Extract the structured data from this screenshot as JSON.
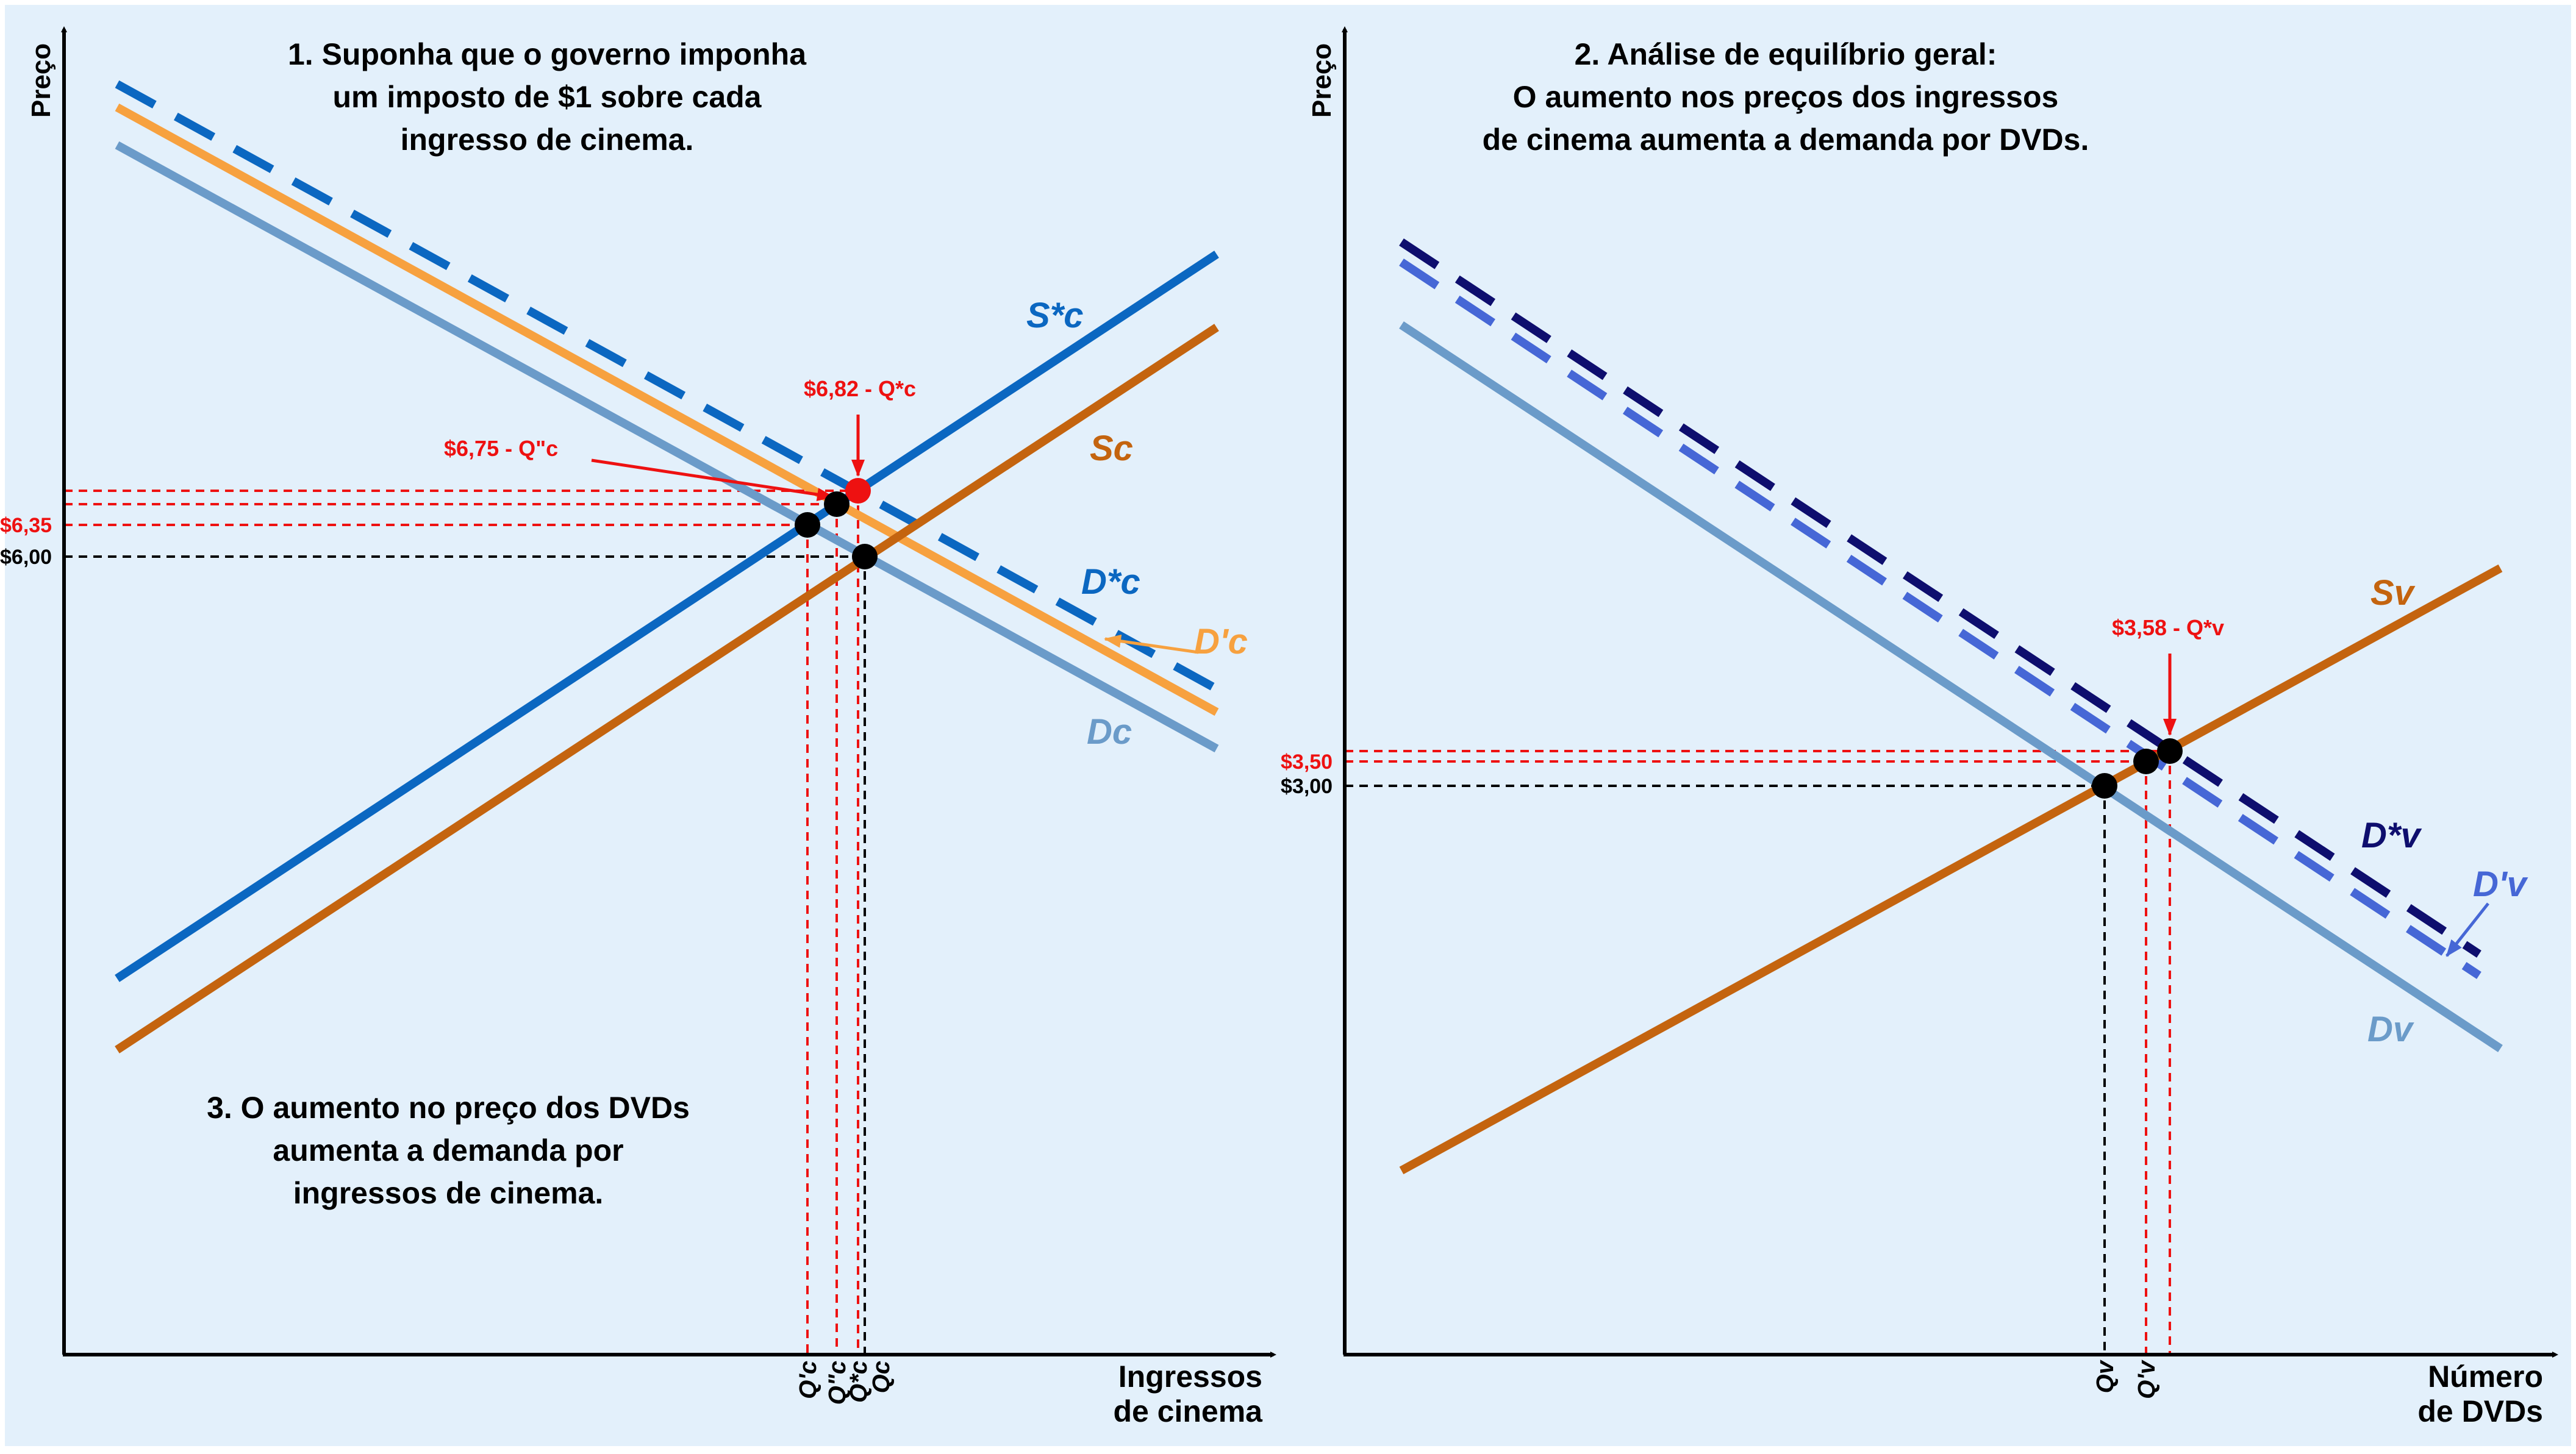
{
  "colors": {
    "background": "#e3f0fb",
    "supply_star": "#0b67c1",
    "supply": "#c4640f",
    "demand": "#6b9bc9",
    "demand_prime": "#f7a13f",
    "demand_star_dash": "#0b67c1",
    "dvd_demand_star": "#0e0e6e",
    "dvd_demand_prime": "#4667d6",
    "red": "#ee1111",
    "black": "#000000"
  },
  "left_panel": {
    "y_axis_label": "Preço",
    "x_axis_label_line1": "Ingressos",
    "x_axis_label_line2": "de cinema",
    "note1_lines": [
      "1. Suponha que o governo imponha",
      "um imposto de $1 sobre cada",
      "ingresso de cinema."
    ],
    "note3_lines": [
      "3. O aumento no preço dos DVDs",
      "aumenta a demanda por",
      "ingressos de cinema."
    ],
    "curve_labels": {
      "s_star": "S*c",
      "s": "Sc",
      "d_star": "D*c",
      "d_prime": "D'c",
      "d": "Dc"
    },
    "callout_682": "$6,82 - Q*c",
    "callout_675": "$6,75 - Q\"c",
    "price_635": "$6,35",
    "price_600": "$6,00",
    "tick_qprime": "Q'c",
    "tick_qdouble": "Q\"c",
    "tick_qstar": "Q*c",
    "tick_qc": "Qc"
  },
  "right_panel": {
    "y_axis_label": "Preço",
    "x_axis_label_line1": "Número",
    "x_axis_label_line2": "de DVDs",
    "note2_lines": [
      "2. Análise de equilíbrio geral:",
      "O aumento nos preços dos ingressos",
      "de cinema aumenta a demanda por DVDs."
    ],
    "curve_labels": {
      "s": "Sv",
      "d_star": "D*v",
      "d_prime": "D'v",
      "d": "Dv"
    },
    "callout_358": "$3,58 - Q*v",
    "price_350": "$3,50",
    "price_300": "$3,00",
    "tick_qv": "Qv",
    "tick_qprime": "Q'v"
  }
}
